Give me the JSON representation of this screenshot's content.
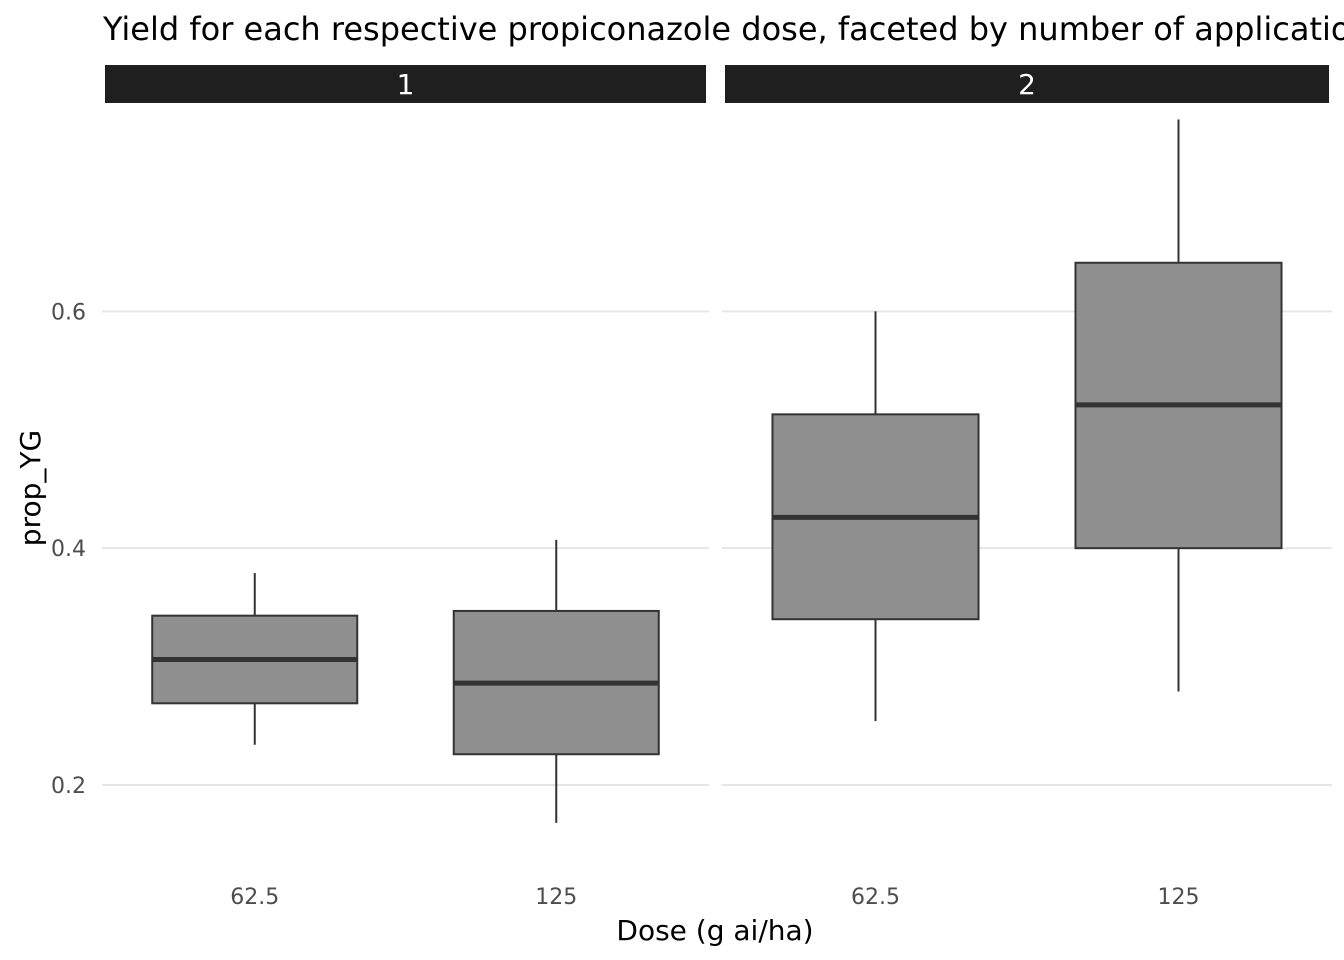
{
  "chart_data": {
    "type": "box",
    "title": "Yield for each respective propiconazole dose, faceted by number of applications",
    "xlabel": "Dose (g ai/ha)",
    "ylabel": "prop_YG",
    "categories": [
      "62.5",
      "125"
    ],
    "yticks": [
      0.2,
      0.4,
      0.6
    ],
    "ylim": [
      0.135,
      0.77
    ],
    "grid": "horizontal",
    "colors": {
      "box_fill": "#8f8f8f",
      "box_line": "#333333",
      "median_line": "#333333",
      "strip_fill": "#1f1f1f",
      "grid": "#e6e6e6"
    },
    "facets": [
      {
        "label": "1",
        "boxes": [
          {
            "category": "62.5",
            "whisker_low": 0.234,
            "q1": 0.269,
            "median": 0.306,
            "q3": 0.343,
            "whisker_high": 0.379
          },
          {
            "category": "125",
            "whisker_low": 0.168,
            "q1": 0.226,
            "median": 0.286,
            "q3": 0.347,
            "whisker_high": 0.407
          }
        ]
      },
      {
        "label": "2",
        "boxes": [
          {
            "category": "62.5",
            "whisker_low": 0.254,
            "q1": 0.34,
            "median": 0.426,
            "q3": 0.513,
            "whisker_high": 0.6
          },
          {
            "category": "125",
            "whisker_low": 0.279,
            "q1": 0.4,
            "median": 0.521,
            "q3": 0.641,
            "whisker_high": 0.762
          }
        ]
      }
    ]
  }
}
